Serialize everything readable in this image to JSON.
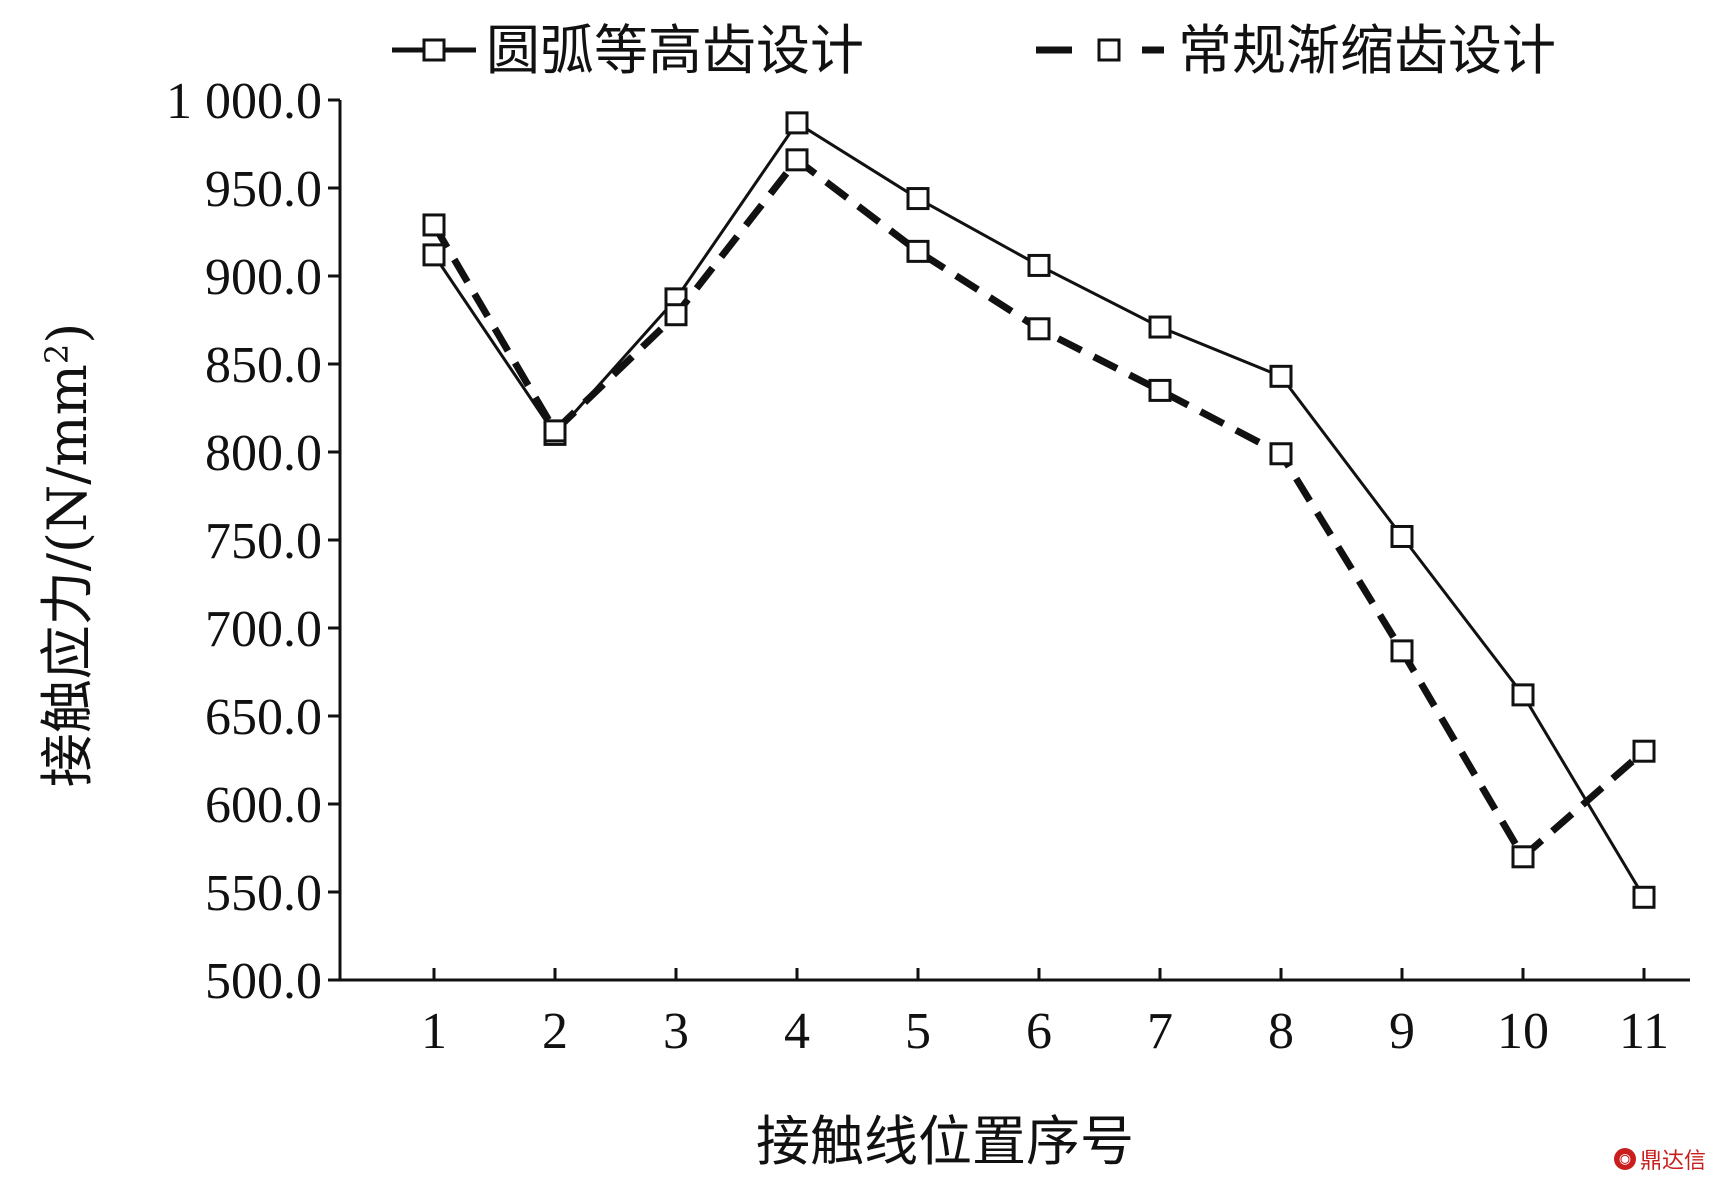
{
  "chart_data": {
    "type": "line",
    "x": [
      1,
      2,
      3,
      4,
      5,
      6,
      7,
      8,
      9,
      10,
      11
    ],
    "series": [
      {
        "name": "圆弧等高齿设计",
        "style": "solid",
        "marker": "open-square",
        "values": [
          912,
          810,
          887,
          987,
          944,
          906,
          871,
          843,
          752,
          662,
          547
        ]
      },
      {
        "name": "常规渐缩齿设计",
        "style": "dashed",
        "marker": "open-square",
        "values": [
          929,
          812,
          878,
          966,
          914,
          870,
          835,
          799,
          687,
          570,
          630
        ]
      }
    ],
    "xlabel": "接触线位置序号",
    "ylabel_main": "接触应力/(N/mm",
    "ylabel_sup": "2",
    "ylabel_close": ")",
    "ylim": [
      500,
      1000
    ],
    "yticks": [
      "500.0",
      "550.0",
      "600.0",
      "650.0",
      "700.0",
      "750.0",
      "800.0",
      "850.0",
      "900.0",
      "950.0",
      "1 000.0"
    ],
    "xticks": [
      "1",
      "2",
      "3",
      "4",
      "5",
      "6",
      "7",
      "8",
      "9",
      "10",
      "11"
    ],
    "legend_position": "top",
    "grid": false,
    "colors": {
      "line": "#111111",
      "background": "#ffffff"
    }
  },
  "watermark": {
    "icon": "logo-icon",
    "text": "鼎达信"
  }
}
